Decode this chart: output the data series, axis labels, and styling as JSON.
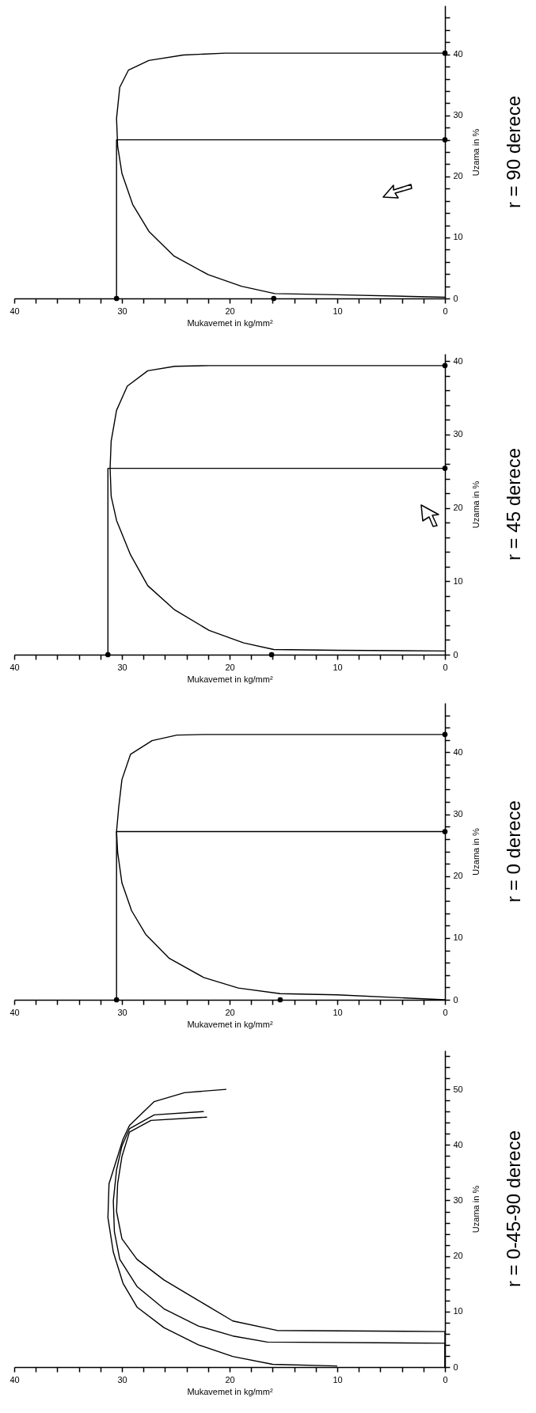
{
  "chart_data": [
    {
      "type": "line",
      "annotations": [
        "r = 0-45-90 derece"
      ],
      "xlabel": "Mukavemet in kg/mm²",
      "ylabel": "Uzama in %",
      "xlim": [
        40,
        0
      ],
      "ylim": [
        0,
        57
      ],
      "xticks": [
        0,
        {
          "value": 2,
          "label": null
        },
        {
          "value": 4,
          "label": null
        },
        {
          "value": 6,
          "label": null
        },
        {
          "value": 8,
          "label": null
        },
        10,
        {
          "value": 12,
          "label": null
        },
        {
          "value": 14,
          "label": null
        },
        {
          "value": 16,
          "label": null
        },
        {
          "value": 18,
          "label": null
        },
        20,
        {
          "value": 22,
          "label": null
        },
        {
          "value": 24,
          "label": null
        },
        {
          "value": 26,
          "label": null
        },
        {
          "value": 28,
          "label": null
        },
        30,
        {
          "value": 32,
          "label": null
        },
        {
          "value": 34,
          "label": null
        },
        {
          "value": 36,
          "label": null
        },
        {
          "value": 38,
          "label": null
        },
        40
      ],
      "yticks": [
        0,
        {
          "value": 2,
          "label": null
        },
        {
          "value": 4,
          "label": null
        },
        {
          "value": 6,
          "label": null
        },
        {
          "value": 8,
          "label": null
        },
        10,
        {
          "value": 12,
          "label": null
        },
        {
          "value": 14,
          "label": null
        },
        {
          "value": 16,
          "label": null
        },
        {
          "value": 18,
          "label": null
        },
        20,
        {
          "value": 22,
          "label": null
        },
        {
          "value": 24,
          "label": null
        },
        {
          "value": 26,
          "label": null
        },
        {
          "value": 28,
          "label": null
        },
        30,
        {
          "value": 32,
          "label": null
        },
        {
          "value": 34,
          "label": null
        },
        {
          "value": 36,
          "label": null
        },
        {
          "value": 38,
          "label": null
        },
        40,
        {
          "value": 42,
          "label": null
        },
        {
          "value": 44,
          "label": null
        },
        {
          "value": 46,
          "label": null
        },
        {
          "value": 48,
          "label": null
        },
        50,
        {
          "value": 52,
          "label": null
        },
        {
          "value": 54,
          "label": null
        },
        {
          "value": 56,
          "label": null
        }
      ],
      "series": [
        {
          "type": "line",
          "color": "#000000",
          "values": [
            0.2,
            0.5,
            1.9,
            4,
            7.1,
            10.8,
            15.1,
            20.7,
            26.9,
            33,
            37.3,
            41,
            43.5,
            47.8,
            49.4,
            50
          ],
          "x": [
            10,
            16,
            19.7,
            22.9,
            26.1,
            28.6,
            29.9,
            30.8,
            31.3,
            31.2,
            30.5,
            29.9,
            29.3,
            27,
            24.2,
            20.3
          ]
        },
        {
          "type": "line",
          "color": "#000000",
          "values": [
            0,
            4.3,
            4.5,
            5.6,
            7.4,
            10.5,
            14.5,
            19.4,
            24.4,
            29.9,
            35.5,
            39.8,
            42.9,
            45.4,
            46
          ],
          "x": [
            0,
            0,
            16.5,
            19.7,
            22.9,
            26.1,
            28.6,
            30.2,
            30.7,
            30.8,
            30.5,
            30,
            29.3,
            27,
            22.4
          ]
        },
        {
          "type": "line",
          "color": "#000000",
          "values": [
            0,
            6.4,
            6.6,
            8.3,
            12,
            15.7,
            19.4,
            23.1,
            28,
            33,
            37.9,
            42.3,
            44.4,
            45
          ],
          "x": [
            0,
            0,
            15.6,
            19.7,
            22.9,
            26.1,
            28.6,
            30,
            30.5,
            30.4,
            30,
            29.3,
            27.3,
            22.1
          ]
        }
      ]
    },
    {
      "type": "line",
      "annotations": [
        "r = 0 derece"
      ],
      "xlabel": "Mukavemet in kg/mm²",
      "ylabel": "Uzama in %",
      "xlim": [
        40,
        0
      ],
      "ylim": [
        0,
        48
      ],
      "xticks": [
        0,
        {
          "value": 2,
          "label": null
        },
        {
          "value": 4,
          "label": null
        },
        {
          "value": 6,
          "label": null
        },
        {
          "value": 8,
          "label": null
        },
        10,
        {
          "value": 12,
          "label": null
        },
        {
          "value": 14,
          "label": null
        },
        {
          "value": 16,
          "label": null
        },
        {
          "value": 18,
          "label": null
        },
        20,
        {
          "value": 22,
          "label": null
        },
        {
          "value": 24,
          "label": null
        },
        {
          "value": 26,
          "label": null
        },
        {
          "value": 28,
          "label": null
        },
        30,
        {
          "value": 32,
          "label": null
        },
        {
          "value": 34,
          "label": null
        },
        {
          "value": 36,
          "label": null
        },
        {
          "value": 38,
          "label": null
        },
        40
      ],
      "yticks": [
        0,
        {
          "value": 2,
          "label": null
        },
        {
          "value": 4,
          "label": null
        },
        {
          "value": 6,
          "label": null
        },
        {
          "value": 8,
          "label": null
        },
        10,
        {
          "value": 12,
          "label": null
        },
        {
          "value": 14,
          "label": null
        },
        {
          "value": 16,
          "label": null
        },
        {
          "value": 18,
          "label": null
        },
        20,
        {
          "value": 22,
          "label": null
        },
        {
          "value": 24,
          "label": null
        },
        {
          "value": 26,
          "label": null
        },
        {
          "value": 28,
          "label": null
        },
        30,
        {
          "value": 32,
          "label": null
        },
        {
          "value": 34,
          "label": null
        },
        {
          "value": 36,
          "label": null
        },
        {
          "value": 38,
          "label": null
        },
        40,
        {
          "value": 42,
          "label": null
        },
        {
          "value": 44,
          "label": null
        },
        {
          "value": 46,
          "label": null
        }
      ],
      "series": [
        {
          "type": "line",
          "color": "#000000",
          "values": [
            0,
            0.8,
            1,
            1.9,
            3.6,
            6.7,
            10.6,
            14.4,
            18.9,
            23.9,
            27.2,
            31.1,
            35.6,
            39.7,
            41.9,
            42.8,
            42.9,
            42.9
          ],
          "x": [
            0,
            10,
            15.3,
            19.2,
            22.4,
            25.6,
            27.8,
            29.1,
            30,
            30.4,
            30.5,
            30.3,
            30,
            29.2,
            27.2,
            24.9,
            22.4,
            0
          ]
        },
        {
          "type": "line",
          "color": "#000000",
          "values": [
            0,
            27.2,
            27.2
          ],
          "x": [
            30.5,
            30.5,
            0
          ]
        },
        {
          "type": "scatter",
          "color": "#000000",
          "marker": "circle",
          "values": [
            0,
            0,
            27.2,
            42.9
          ],
          "x": [
            30.5,
            15.3,
            0,
            0
          ]
        }
      ]
    },
    {
      "type": "line",
      "annotations": [
        "r = 45 derece"
      ],
      "xlabel": "Mukavemet in kg/mm²",
      "ylabel": "Uzama in %",
      "xlim": [
        40,
        0
      ],
      "ylim": [
        0,
        41
      ],
      "xticks": [
        0,
        {
          "value": 2,
          "label": null
        },
        {
          "value": 4,
          "label": null
        },
        {
          "value": 6,
          "label": null
        },
        {
          "value": 8,
          "label": null
        },
        10,
        {
          "value": 12,
          "label": null
        },
        {
          "value": 14,
          "label": null
        },
        {
          "value": 16,
          "label": null
        },
        {
          "value": 18,
          "label": null
        },
        20,
        {
          "value": 22,
          "label": null
        },
        {
          "value": 24,
          "label": null
        },
        {
          "value": 26,
          "label": null
        },
        {
          "value": 28,
          "label": null
        },
        30,
        {
          "value": 32,
          "label": null
        },
        {
          "value": 34,
          "label": null
        },
        {
          "value": 36,
          "label": null
        },
        {
          "value": 38,
          "label": null
        },
        40
      ],
      "yticks": [
        0,
        {
          "value": 2,
          "label": null
        },
        {
          "value": 4,
          "label": null
        },
        {
          "value": 6,
          "label": null
        },
        {
          "value": 8,
          "label": null
        },
        10,
        {
          "value": 12,
          "label": null
        },
        {
          "value": 14,
          "label": null
        },
        {
          "value": 16,
          "label": null
        },
        {
          "value": 18,
          "label": null
        },
        20,
        {
          "value": 22,
          "label": null
        },
        {
          "value": 24,
          "label": null
        },
        {
          "value": 26,
          "label": null
        },
        {
          "value": 28,
          "label": null
        },
        30,
        {
          "value": 32,
          "label": null
        },
        {
          "value": 34,
          "label": null
        },
        {
          "value": 36,
          "label": null
        },
        {
          "value": 38,
          "label": null
        },
        40
      ],
      "series": [
        {
          "type": "line",
          "color": "#000000",
          "values": [
            0.5,
            0.6,
            0.7,
            1.6,
            3.3,
            6.1,
            9.4,
            13.6,
            18.3,
            21.6,
            25.4,
            29.1,
            33.3,
            36.6,
            38.7,
            39.3,
            39.4,
            39.4
          ],
          "x": [
            0,
            10,
            15.9,
            18.7,
            21.9,
            25.1,
            27.6,
            29.2,
            30.5,
            31,
            31.1,
            31,
            30.5,
            29.5,
            27.6,
            25.1,
            21.9,
            0
          ]
        },
        {
          "type": "line",
          "color": "#000000",
          "values": [
            0,
            25.4,
            25.4
          ],
          "x": [
            31.3,
            31.3,
            0
          ]
        },
        {
          "type": "scatter",
          "color": "#000000",
          "marker": "circle",
          "values": [
            0,
            0,
            25.4,
            39.4
          ],
          "x": [
            31.3,
            16.1,
            0,
            0
          ]
        }
      ]
    },
    {
      "type": "line",
      "annotations": [
        "r = 90 derece"
      ],
      "xlabel": "Mukavemet in kg/mm²",
      "ylabel": "Uzama in %",
      "xlim": [
        40,
        0
      ],
      "ylim": [
        0,
        48
      ],
      "xticks": [
        0,
        {
          "value": 2,
          "label": null
        },
        {
          "value": 4,
          "label": null
        },
        {
          "value": 6,
          "label": null
        },
        {
          "value": 8,
          "label": null
        },
        10,
        {
          "value": 12,
          "label": null
        },
        {
          "value": 14,
          "label": null
        },
        {
          "value": 16,
          "label": null
        },
        {
          "value": 18,
          "label": null
        },
        20,
        {
          "value": 22,
          "label": null
        },
        {
          "value": 24,
          "label": null
        },
        {
          "value": 26,
          "label": null
        },
        {
          "value": 28,
          "label": null
        },
        30,
        {
          "value": 32,
          "label": null
        },
        {
          "value": 34,
          "label": null
        },
        {
          "value": 36,
          "label": null
        },
        {
          "value": 38,
          "label": null
        },
        40
      ],
      "yticks": [
        0,
        {
          "value": 2,
          "label": null
        },
        {
          "value": 4,
          "label": null
        },
        {
          "value": 6,
          "label": null
        },
        {
          "value": 8,
          "label": null
        },
        10,
        {
          "value": 12,
          "label": null
        },
        {
          "value": 14,
          "label": null
        },
        {
          "value": 16,
          "label": null
        },
        {
          "value": 18,
          "label": null
        },
        20,
        {
          "value": 22,
          "label": null
        },
        {
          "value": 24,
          "label": null
        },
        {
          "value": 26,
          "label": null
        },
        {
          "value": 28,
          "label": null
        },
        30,
        {
          "value": 32,
          "label": null
        },
        {
          "value": 34,
          "label": null
        },
        {
          "value": 36,
          "label": null
        },
        {
          "value": 38,
          "label": null
        },
        40,
        {
          "value": 42,
          "label": null
        },
        {
          "value": 44,
          "label": null
        },
        {
          "value": 46,
          "label": null
        }
      ],
      "series": [
        {
          "type": "line",
          "color": "#000000",
          "values": [
            0.2,
            0.6,
            0.8,
            2,
            3.9,
            7,
            11,
            15.4,
            20.5,
            25,
            29.5,
            34.6,
            37.4,
            39,
            39.9,
            40.2,
            40.2
          ],
          "x": [
            0,
            10,
            15.8,
            18.9,
            22,
            25.2,
            27.5,
            29,
            30,
            30.4,
            30.5,
            30.2,
            29.4,
            27.5,
            24.3,
            20.4,
            0
          ]
        },
        {
          "type": "line",
          "color": "#000000",
          "values": [
            0,
            26,
            26
          ],
          "x": [
            30.5,
            30.5,
            0
          ]
        },
        {
          "type": "scatter",
          "color": "#000000",
          "marker": "circle",
          "values": [
            0,
            0,
            26,
            40.2
          ],
          "x": [
            30.5,
            15.9,
            0,
            0
          ]
        }
      ]
    }
  ]
}
